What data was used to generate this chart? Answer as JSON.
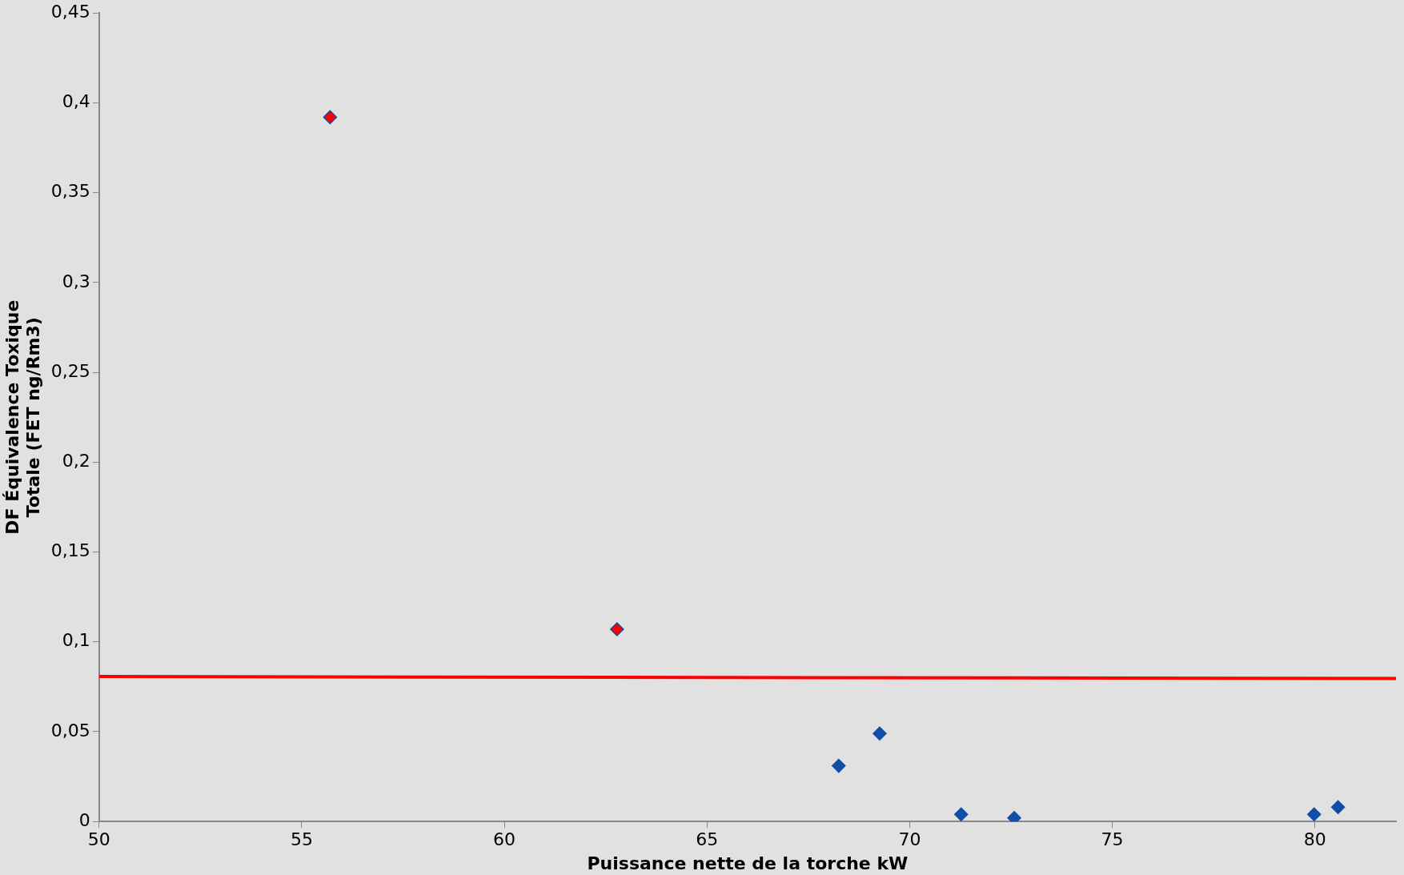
{
  "chart_data": {
    "type": "scatter",
    "xlabel": "Puissance nette de la torche kW",
    "ylabel": "DF Équivalence Toxique Totale (FET ng/Rm3)",
    "series": [
      {
        "color": "#0f4fa8",
        "colors": [
          "#ff0000",
          "#ff0000",
          "#0f4fa8",
          "#0f4fa8",
          "#0f4fa8",
          "#0f4fa8",
          "#0f4fa8",
          "#0f4fa8"
        ],
        "x": [
          55.7,
          62.78,
          68.25,
          69.26,
          71.27,
          72.58,
          79.98,
          80.57
        ],
        "values": [
          0.392,
          0.107,
          0.031,
          0.049,
          0.004,
          0.002,
          0.004,
          0.008
        ]
      },
      {
        "type": "line",
        "marker": "none",
        "color": "#ff0000",
        "x": [
          50,
          82
        ],
        "values": [
          0.0807,
          0.0796
        ]
      }
    ],
    "xlim": [
      50,
      82
    ],
    "xticks": [
      50,
      55,
      60,
      65,
      70,
      75,
      80
    ],
    "ylim": [
      0,
      0.45
    ],
    "yticks": [
      0,
      {
        "value": 0.05,
        "label": "0,05"
      },
      {
        "value": 0.1,
        "label": "0,1"
      },
      {
        "value": 0.15,
        "label": "0,15"
      },
      {
        "value": 0.2,
        "label": "0,2"
      },
      {
        "value": 0.25,
        "label": "0,25"
      },
      {
        "value": 0.3,
        "label": "0,3"
      },
      {
        "value": 0.35,
        "label": "0,35"
      },
      {
        "value": 0.4,
        "label": "0,4"
      },
      {
        "value": 0.45,
        "label": "0,45"
      }
    ],
    "grid": false,
    "legend": false,
    "marker": "diamond",
    "line_style": "solid"
  }
}
